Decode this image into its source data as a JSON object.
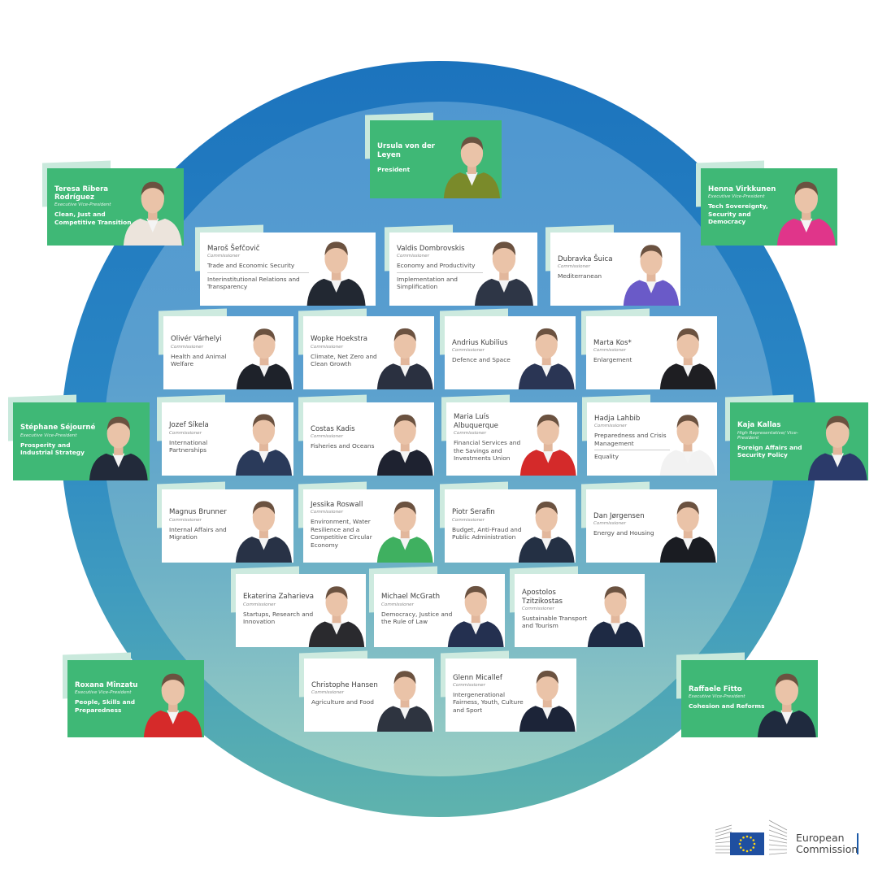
{
  "colors": {
    "ring": "#1c73bd",
    "green": "#3fb876",
    "tab": "#cdeadf",
    "eu_blue": "#1f4fa0",
    "eu_star": "#ffd617"
  },
  "logo": {
    "line1": "European",
    "line2": "Commission"
  },
  "members": [
    {
      "name": "Ursula von der Leyen",
      "role": "",
      "portfolios": [
        "President"
      ],
      "style": "green",
      "jacket": "#7a8a2a"
    },
    {
      "name": "Teresa Ribera Rodríguez",
      "role": "Executive Vice-President",
      "portfolios": [
        "Clean, Just and Competitive Transition"
      ],
      "style": "green",
      "jacket": "#ece4dc"
    },
    {
      "name": "Henna Virkkunen",
      "role": "Executive Vice-President",
      "portfolios": [
        "Tech Sovereignty, Security and Democracy"
      ],
      "style": "green",
      "jacket": "#e0358a"
    },
    {
      "name": "Stéphane Séjourné",
      "role": "Executive Vice-President",
      "portfolios": [
        "Prosperity and Industrial Strategy"
      ],
      "style": "green",
      "jacket": "#222a3a"
    },
    {
      "name": "Kaja Kallas",
      "role": "High Representative/ Vice-President",
      "portfolios": [
        "Foreign Affairs and Security Policy"
      ],
      "style": "green",
      "jacket": "#2b3a6a"
    },
    {
      "name": "Roxana Mînzatu",
      "role": "Executive Vice-President",
      "portfolios": [
        "People, Skills and Preparedness"
      ],
      "style": "green",
      "jacket": "#d62a2a"
    },
    {
      "name": "Raffaele Fitto",
      "role": "Executive Vice-President",
      "portfolios": [
        "Cohesion and Reforms"
      ],
      "style": "green",
      "jacket": "#1f2a3e"
    },
    {
      "name": "Maroš Šefčovič",
      "role": "Commissioner",
      "portfolios": [
        "Trade and Economic Security",
        "Interinstitutional Relations and Transparency"
      ],
      "style": "white",
      "jacket": "#222832"
    },
    {
      "name": "Valdis Dombrovskis",
      "role": "Commissioner",
      "portfolios": [
        "Economy and Productivity",
        "Implementation and Simplification"
      ],
      "style": "white",
      "jacket": "#2e3646"
    },
    {
      "name": "Dubravka Šuica",
      "role": "Commissioner",
      "portfolios": [
        "Mediterranean"
      ],
      "style": "white",
      "jacket": "#6a5ac8"
    },
    {
      "name": "Olivér Várhelyi",
      "role": "Commissioner",
      "portfolios": [
        "Health and Animal Welfare"
      ],
      "style": "white",
      "jacket": "#1e222a"
    },
    {
      "name": "Wopke Hoekstra",
      "role": "Commissioner",
      "portfolios": [
        "Climate, Net Zero and Clean Growth"
      ],
      "style": "white",
      "jacket": "#2a3040"
    },
    {
      "name": "Andrius Kubilius",
      "role": "Commissioner",
      "portfolios": [
        "Defence and Space"
      ],
      "style": "white",
      "jacket": "#2a3554"
    },
    {
      "name": "Marta Kos*",
      "role": "Commissioner",
      "portfolios": [
        "Enlargement"
      ],
      "style": "white",
      "jacket": "#1e1e22"
    },
    {
      "name": "Jozef Síkela",
      "role": "Commissioner",
      "portfolios": [
        "International Partnerships"
      ],
      "style": "white",
      "jacket": "#2a3a5a"
    },
    {
      "name": "Costas Kadis",
      "role": "Commissioner",
      "portfolios": [
        "Fisheries and Oceans"
      ],
      "style": "white",
      "jacket": "#1e2230"
    },
    {
      "name": "Maria Luís Albuquerque",
      "role": "Commissioner",
      "portfolios": [
        "Financial Services and the Savings and Investments Union"
      ],
      "style": "white",
      "jacket": "#d42a2a"
    },
    {
      "name": "Hadja Lahbib",
      "role": "Commissioner",
      "portfolios": [
        "Preparedness and Crisis Management",
        "Equality"
      ],
      "style": "white",
      "jacket": "#f2f2f2"
    },
    {
      "name": "Magnus Brunner",
      "role": "Commissioner",
      "portfolios": [
        "Internal Affairs and Migration"
      ],
      "style": "white",
      "jacket": "#283246"
    },
    {
      "name": "Jessika Roswall",
      "role": "Commissioner",
      "portfolios": [
        "Environment, Water Resilience and a Competitive Circular Economy"
      ],
      "style": "white",
      "jacket": "#3fb060"
    },
    {
      "name": "Piotr Serafin",
      "role": "Commissioner",
      "portfolios": [
        "Budget, Anti-Fraud and Public Administration"
      ],
      "style": "white",
      "jacket": "#243044"
    },
    {
      "name": "Dan Jørgensen",
      "role": "Commissioner",
      "portfolios": [
        "Energy and Housing"
      ],
      "style": "white",
      "jacket": "#1a1c22"
    },
    {
      "name": "Ekaterina Zaharieva",
      "role": "Commissioner",
      "portfolios": [
        "Startups, Research and Innovation"
      ],
      "style": "white",
      "jacket": "#2a2a2e"
    },
    {
      "name": "Michael McGrath",
      "role": "Commissioner",
      "portfolios": [
        "Democracy, Justice and the Rule of Law"
      ],
      "style": "white",
      "jacket": "#243050"
    },
    {
      "name": "Apostolos Tzitzikostas",
      "role": "Commissioner",
      "portfolios": [
        "Sustainable Transport and Tourism"
      ],
      "style": "white",
      "jacket": "#1e2a44"
    },
    {
      "name": "Christophe Hansen",
      "role": "Commissioner",
      "portfolios": [
        "Agriculture and Food"
      ],
      "style": "white",
      "jacket": "#2e3440"
    },
    {
      "name": "Glenn Micallef",
      "role": "Commissioner",
      "portfolios": [
        "Intergenerational Fairness, Youth, Culture and Sport"
      ],
      "style": "white",
      "jacket": "#1c2438"
    }
  ]
}
